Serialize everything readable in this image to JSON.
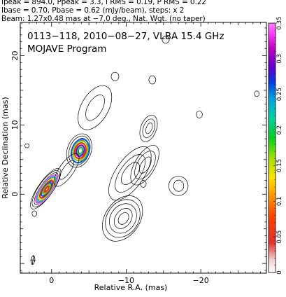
{
  "header": {
    "line1": "Ipeak = 894.0, Ppeak = 3.3, I RMS = 0.19, P RMS = 0.22",
    "line2": "Ibase = 0.70, Pbase = 0.62 (mJy/beam), steps: x 2",
    "line3": "Beam: 1.27x0.48 mas at −7.0 deg., Nat. Wgt. (no taper)"
  },
  "chart_data": {
    "type": "contour",
    "title": "0113−118, 2010−08−27, VLBA 15.4 GHz",
    "subtitle": "MOJAVE Program",
    "xlabel": "Relative R.A. (mas)",
    "ylabel": "Relative Declination (mas)",
    "xlim": [
      4.2,
      -28.8
    ],
    "ylim": [
      -11.4,
      24.8
    ],
    "x_ticks": [
      0,
      -10,
      -20
    ],
    "x_tick_labels": [
      "0",
      "−10",
      "−20"
    ],
    "y_ticks": [
      0,
      10,
      20
    ],
    "y_tick_labels": [
      "0",
      "10",
      "20"
    ],
    "colorbar": {
      "range": [
        0,
        0.35
      ],
      "ticks": [
        0,
        0.05,
        0.1,
        0.15,
        0.2,
        0.25,
        0.3,
        0.35
      ],
      "tick_labels": [
        "0",
        "0.05",
        "0.1",
        "0.15",
        "0.2",
        "0.25",
        "0.3",
        "0.35"
      ]
    },
    "beam": {
      "major_mas": 1.27,
      "minor_mas": 0.48,
      "pa_deg": -7.0,
      "center": [
        2.5,
        -9.5
      ]
    },
    "contour_regions": [
      {
        "name": "core",
        "center": [
          0.8,
          0.8
        ],
        "rx": 1.0,
        "ry": 3.5,
        "angle_deg": 35,
        "levels": 9,
        "colored": true
      },
      {
        "name": "knot-A",
        "center": [
          -3.7,
          6.3
        ],
        "rx": 1.5,
        "ry": 2.5,
        "angle_deg": 20,
        "levels": 7,
        "colored": true
      },
      {
        "name": "jet-bridge",
        "center": [
          -2.0,
          3.5
        ],
        "rx": 0.9,
        "ry": 2.8,
        "angle_deg": 35,
        "levels": 2,
        "colored": false
      },
      {
        "name": "extended-halo",
        "center": [
          -5.8,
          12.5
        ],
        "rx": 1.8,
        "ry": 3.5,
        "angle_deg": 30,
        "levels": 2,
        "colored": false
      },
      {
        "name": "jet-mid",
        "center": [
          -10.5,
          3.0
        ],
        "rx": 2.0,
        "ry": 4.5,
        "angle_deg": 35,
        "levels": 3,
        "colored": false
      },
      {
        "name": "knot-B",
        "center": [
          -9.5,
          -3.5
        ],
        "rx": 2.5,
        "ry": 3.6,
        "angle_deg": 35,
        "levels": 5,
        "colored": false
      },
      {
        "name": "jet-outer",
        "center": [
          -12.5,
          4.2
        ],
        "rx": 1.4,
        "ry": 3.2,
        "angle_deg": 30,
        "levels": 3,
        "colored": false
      },
      {
        "name": "knot-C",
        "center": [
          -13.0,
          9.5
        ],
        "rx": 1.0,
        "ry": 2.0,
        "angle_deg": 20,
        "levels": 3,
        "colored": false
      },
      {
        "name": "blob-far",
        "center": [
          -17.0,
          1.2
        ],
        "rx": 1.2,
        "ry": 1.4,
        "angle_deg": 0,
        "levels": 2,
        "colored": false
      },
      {
        "name": "blob-ne",
        "center": [
          -8.5,
          17.0
        ],
        "rx": 0.5,
        "ry": 0.6,
        "angle_deg": 0,
        "levels": 1,
        "colored": false
      },
      {
        "name": "blob-top",
        "center": [
          -15.3,
          22.3
        ],
        "rx": 0.5,
        "ry": 0.5,
        "angle_deg": 0,
        "levels": 1,
        "colored": false
      },
      {
        "name": "blob-mid",
        "center": [
          -13.5,
          16.5
        ],
        "rx": 0.5,
        "ry": 0.6,
        "angle_deg": 0,
        "levels": 1,
        "colored": false
      },
      {
        "name": "blob-small",
        "center": [
          -12.3,
          1.5
        ],
        "rx": 0.4,
        "ry": 0.5,
        "angle_deg": 0,
        "levels": 1,
        "colored": false
      },
      {
        "name": "blob-right",
        "center": [
          -19.8,
          11.5
        ],
        "rx": 0.4,
        "ry": 0.5,
        "angle_deg": 0,
        "levels": 1,
        "colored": false
      },
      {
        "name": "blob-left",
        "center": [
          2.3,
          -2.8
        ],
        "rx": 0.3,
        "ry": 0.4,
        "angle_deg": 0,
        "levels": 1,
        "colored": false
      },
      {
        "name": "blob-edge",
        "center": [
          -27.5,
          14.5
        ],
        "rx": 0.3,
        "ry": 0.4,
        "angle_deg": 0,
        "levels": 1,
        "colored": false
      },
      {
        "name": "blob-east",
        "center": [
          3.3,
          7.0
        ],
        "rx": 0.3,
        "ry": 0.3,
        "angle_deg": 0,
        "levels": 1,
        "colored": false
      }
    ]
  }
}
